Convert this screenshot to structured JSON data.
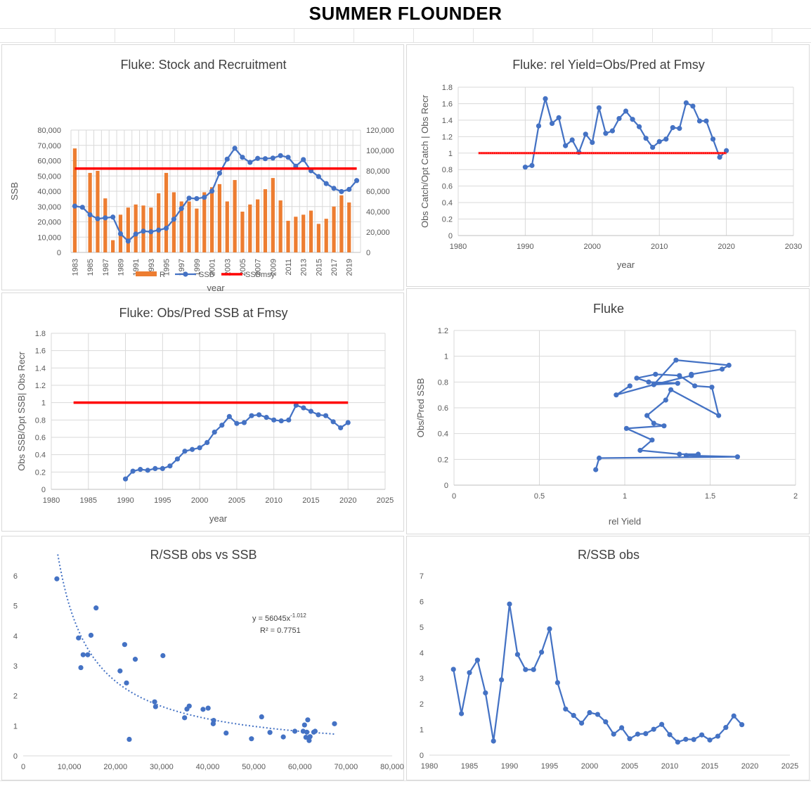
{
  "page": {
    "title": "SUMMER FLOUNDER"
  },
  "colors": {
    "blue": "#4472C4",
    "orange": "#ED7D31",
    "red": "#FF0000",
    "grid": "#d9d9d9",
    "axis_text": "#595959"
  },
  "chart_data": [
    {
      "id": "stock-recruitment",
      "type": "bar",
      "title": "Fluke: Stock and Recruitment",
      "xlabel": "year",
      "ylabel": "SSB",
      "ylim": [
        0,
        80000
      ],
      "y2lim": [
        0,
        120000
      ],
      "yticks": [
        "80,000",
        "70,000",
        "60,000",
        "50,000",
        "40,000",
        "30,000",
        "20,000",
        "10,000",
        "0"
      ],
      "y2ticks": [
        "120,000",
        "100,000",
        "80,000",
        "60,000",
        "40,000",
        "20,000",
        "0"
      ],
      "xticks": [
        "1983",
        "1985",
        "1987",
        "1989",
        "1991",
        "1993",
        "1995",
        "1997",
        "1999",
        "2001",
        "2003",
        "2005",
        "2007",
        "2009",
        "2011",
        "2013",
        "2015",
        "2017",
        "2019"
      ],
      "grid": true,
      "legend_position": "bottom",
      "categories": [
        1983,
        1984,
        1985,
        1986,
        1987,
        1988,
        1989,
        1990,
        1991,
        1992,
        1993,
        1994,
        1995,
        1996,
        1997,
        1998,
        1999,
        2000,
        2001,
        2002,
        2003,
        2004,
        2005,
        2006,
        2007,
        2008,
        2009,
        2010,
        2011,
        2012,
        2013,
        2014,
        2015,
        2016,
        2017,
        2018,
        2019,
        2020
      ],
      "series": [
        {
          "name": "R",
          "kind": "bar",
          "axis": "secondary",
          "values": [
            102000,
            null,
            78000,
            80000,
            53000,
            12000,
            37000,
            44000,
            47000,
            46000,
            44000,
            58000,
            78000,
            59000,
            50000,
            50000,
            43000,
            59000,
            64000,
            67000,
            50000,
            71000,
            40000,
            47000,
            52000,
            62000,
            73000,
            51000,
            31000,
            35000,
            37000,
            41000,
            28000,
            33000,
            45000,
            56000,
            49000,
            null
          ]
        },
        {
          "name": "SSB",
          "kind": "line",
          "axis": "primary",
          "values": [
            30300,
            29500,
            24600,
            22000,
            22600,
            23100,
            12200,
            7400,
            12000,
            13900,
            13500,
            14600,
            15800,
            21700,
            28700,
            35500,
            35200,
            36000,
            40100,
            51800,
            61000,
            68100,
            62200,
            58900,
            61500,
            61300,
            61700,
            63300,
            62200,
            56400,
            60700,
            53400,
            49600,
            45000,
            41900,
            39800,
            41200,
            47000
          ]
        },
        {
          "name": "SSBmsy",
          "kind": "line",
          "axis": "primary",
          "values": [
            54800,
            54800,
            54800,
            54800,
            54800,
            54800,
            54800,
            54800,
            54800,
            54800,
            54800,
            54800,
            54800,
            54800,
            54800,
            54800,
            54800,
            54800,
            54800,
            54800,
            54800,
            54800,
            54800,
            54800,
            54800,
            54800,
            54800,
            54800,
            54800,
            54800,
            54800,
            54800,
            54800,
            54800,
            54800,
            54800,
            54800,
            54800
          ]
        }
      ]
    },
    {
      "id": "rel-yield",
      "type": "scatter",
      "title": "Fluke:  rel Yield=Obs/Pred  at Fmsy",
      "xlabel": "year",
      "ylabel": "Obs Catch/Opt Catch | Obs Recr",
      "xlim": [
        1980,
        2030
      ],
      "ylim": [
        0,
        1.8
      ],
      "xticks": [
        "1980",
        "1990",
        "2000",
        "2010",
        "2020",
        "2030"
      ],
      "yticks": [
        "1.8",
        "1.6",
        "1.4",
        "1.2",
        "1",
        "0.8",
        "0.6",
        "0.4",
        "0.2",
        "0"
      ],
      "grid": true,
      "series": [
        {
          "name": "",
          "kind": "line-markers",
          "x": [
            1990,
            1991,
            1992,
            1993,
            1994,
            1995,
            1996,
            1997,
            1998,
            1999,
            2000,
            2001,
            2002,
            2003,
            2004,
            2005,
            2006,
            2007,
            2008,
            2009,
            2010,
            2011,
            2012,
            2013,
            2014,
            2015,
            2016,
            2017,
            2018,
            2019,
            2020
          ],
          "y": [
            0.83,
            0.85,
            1.33,
            1.66,
            1.36,
            1.43,
            1.09,
            1.16,
            1.01,
            1.23,
            1.13,
            1.55,
            1.24,
            1.27,
            1.42,
            1.51,
            1.41,
            1.32,
            1.18,
            1.07,
            1.14,
            1.17,
            1.31,
            1.3,
            1.61,
            1.57,
            1.39,
            1.39,
            1.17,
            0.95,
            1.03
          ]
        },
        {
          "name": "",
          "kind": "line",
          "x": [
            1983,
            2020
          ],
          "y": [
            1,
            1
          ]
        }
      ]
    },
    {
      "id": "obs-pred-ssb",
      "type": "line",
      "title": "Fluke: Obs/Pred SSB at Fmsy",
      "xlabel": "year",
      "ylabel": "Obs SSB/Opt SSB| Obs Recr",
      "xlim": [
        1980,
        2025
      ],
      "ylim": [
        0,
        1.8
      ],
      "xticks": [
        "1980",
        "1985",
        "1990",
        "1995",
        "2000",
        "2005",
        "2010",
        "2015",
        "2020",
        "2025"
      ],
      "yticks": [
        "1.8",
        "1.6",
        "1.4",
        "1.2",
        "1",
        "0.8",
        "0.6",
        "0.4",
        "0.2",
        "0"
      ],
      "grid": true,
      "series": [
        {
          "name": "",
          "kind": "line-markers",
          "x": [
            1990,
            1991,
            1992,
            1993,
            1994,
            1995,
            1996,
            1997,
            1998,
            1999,
            2000,
            2001,
            2002,
            2003,
            2004,
            2005,
            2006,
            2007,
            2008,
            2009,
            2010,
            2011,
            2012,
            2013,
            2014,
            2015,
            2016,
            2017,
            2018,
            2019,
            2020
          ],
          "y": [
            0.12,
            0.21,
            0.23,
            0.22,
            0.24,
            0.24,
            0.27,
            0.35,
            0.44,
            0.46,
            0.48,
            0.54,
            0.66,
            0.74,
            0.84,
            0.76,
            0.77,
            0.85,
            0.86,
            0.83,
            0.8,
            0.79,
            0.8,
            0.97,
            0.94,
            0.9,
            0.86,
            0.85,
            0.78,
            0.71,
            0.77
          ]
        },
        {
          "name": "",
          "kind": "line",
          "x": [
            1983,
            2020
          ],
          "y": [
            1,
            1
          ]
        }
      ]
    },
    {
      "id": "phase-plot",
      "type": "scatter",
      "title": "Fluke",
      "xlabel": "rel Yield",
      "ylabel": "Obs/Pred SSB",
      "xlim": [
        0,
        2
      ],
      "ylim": [
        0,
        1.2
      ],
      "xticks": [
        "0",
        "0.5",
        "1",
        "1.5",
        "2"
      ],
      "yticks": [
        "1.2",
        "1",
        "0.8",
        "0.6",
        "0.4",
        "0.2",
        "0"
      ],
      "grid": true,
      "series": [
        {
          "name": "",
          "kind": "line-markers",
          "x": [
            0.83,
            0.85,
            1.66,
            1.36,
            1.43,
            1.32,
            1.09,
            1.16,
            1.01,
            1.23,
            1.17,
            1.13,
            1.24,
            1.27,
            1.55,
            1.51,
            1.41,
            1.32,
            1.18,
            1.07,
            1.14,
            1.31,
            1.17,
            1.3,
            1.61,
            1.57,
            1.39,
            1.39,
            1.17,
            0.95,
            1.03
          ],
          "y": [
            0.12,
            0.21,
            0.22,
            0.23,
            0.24,
            0.24,
            0.27,
            0.35,
            0.44,
            0.46,
            0.48,
            0.54,
            0.66,
            0.74,
            0.54,
            0.76,
            0.77,
            0.85,
            0.86,
            0.83,
            0.8,
            0.79,
            0.78,
            0.97,
            0.93,
            0.9,
            0.86,
            0.85,
            0.78,
            0.7,
            0.77
          ]
        }
      ]
    },
    {
      "id": "r-ssb-vs-ssb",
      "type": "scatter",
      "title": "R/SSB obs vs SSB",
      "xlabel": "",
      "ylabel": "",
      "xlim": [
        0,
        80000
      ],
      "ylim": [
        0,
        6
      ],
      "xticks": [
        "0",
        "10,000",
        "20,000",
        "30,000",
        "40,000",
        "50,000",
        "60,000",
        "70,000",
        "80,000"
      ],
      "yticks": [
        "6",
        "5",
        "4",
        "3",
        "2",
        "1",
        "0"
      ],
      "grid": false,
      "trendline": {
        "type": "power",
        "a": 56045,
        "b": -1.012,
        "label": "y = 56045x",
        "exponent": "-1.012",
        "r2_label": "R² = 0.7751"
      },
      "series": [
        {
          "name": "",
          "kind": "markers",
          "x": [
            7300,
            12000,
            12500,
            13000,
            14000,
            14700,
            15800,
            21000,
            22000,
            22400,
            23000,
            24300,
            28500,
            28700,
            30300,
            35000,
            35500,
            36000,
            39000,
            40100,
            41200,
            41300,
            44000,
            49500,
            51700,
            53500,
            56400,
            58900,
            60700,
            61000,
            61300,
            61500,
            61700,
            62000,
            62200,
            63000,
            63300,
            67500
          ],
          "y": [
            5.9,
            3.93,
            2.94,
            3.37,
            3.37,
            4.02,
            4.93,
            2.83,
            3.71,
            2.43,
            0.55,
            3.22,
            1.8,
            1.64,
            3.34,
            1.27,
            1.56,
            1.66,
            1.55,
            1.59,
            1.07,
            1.18,
            0.76,
            0.57,
            1.3,
            0.78,
            0.63,
            0.82,
            0.82,
            1.03,
            0.62,
            0.79,
            1.2,
            0.51,
            0.64,
            0.79,
            0.82,
            1.07
          ]
        }
      ]
    },
    {
      "id": "r-ssb-obs",
      "type": "line",
      "title": "R/SSB obs",
      "xlabel": "",
      "ylabel": "",
      "xlim": [
        1980,
        2025
      ],
      "ylim": [
        0,
        7
      ],
      "xticks": [
        "1980",
        "1985",
        "1990",
        "1995",
        "2000",
        "2005",
        "2010",
        "2015",
        "2020",
        "2025"
      ],
      "yticks": [
        "7",
        "6",
        "5",
        "4",
        "3",
        "2",
        "1",
        "0"
      ],
      "grid": false,
      "series": [
        {
          "name": "",
          "kind": "line-markers",
          "x": [
            1983,
            1984,
            1985,
            1986,
            1987,
            1988,
            1989,
            1990,
            1991,
            1992,
            1993,
            1994,
            1995,
            1996,
            1997,
            1998,
            1999,
            2000,
            2001,
            2002,
            2003,
            2004,
            2005,
            2006,
            2007,
            2008,
            2009,
            2010,
            2011,
            2012,
            2013,
            2014,
            2015,
            2016,
            2017,
            2018,
            2019
          ],
          "y": [
            3.35,
            1.62,
            3.22,
            3.71,
            2.43,
            0.55,
            2.94,
            5.9,
            3.93,
            3.34,
            3.34,
            4.02,
            4.93,
            2.83,
            1.8,
            1.55,
            1.25,
            1.66,
            1.59,
            1.3,
            0.82,
            1.07,
            0.64,
            0.82,
            0.84,
            1.01,
            1.2,
            0.8,
            0.51,
            0.62,
            0.61,
            0.79,
            0.59,
            0.74,
            1.08,
            1.53,
            1.19
          ]
        }
      ]
    }
  ]
}
